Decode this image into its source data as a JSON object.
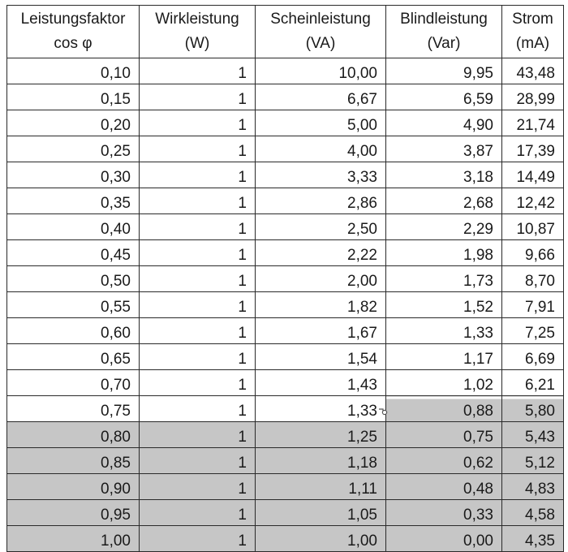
{
  "table": {
    "headers": [
      {
        "line1": "Leistungsfaktor",
        "line2": "cos φ"
      },
      {
        "line1": "Wirkleistung",
        "line2": "(W)"
      },
      {
        "line1": "Scheinleistung",
        "line2": "(VA)"
      },
      {
        "line1": "Blindleistung",
        "line2": "(Var)"
      },
      {
        "line1": "Strom",
        "line2": "(mA)"
      }
    ],
    "rows": [
      [
        "0,10",
        "1",
        "10,00",
        "9,95",
        "43,48"
      ],
      [
        "0,15",
        "1",
        "6,67",
        "6,59",
        "28,99"
      ],
      [
        "0,20",
        "1",
        "5,00",
        "4,90",
        "21,74"
      ],
      [
        "0,25",
        "1",
        "4,00",
        "3,87",
        "17,39"
      ],
      [
        "0,30",
        "1",
        "3,33",
        "3,18",
        "14,49"
      ],
      [
        "0,35",
        "1",
        "2,86",
        "2,68",
        "12,42"
      ],
      [
        "0,40",
        "1",
        "2,50",
        "2,29",
        "10,87"
      ],
      [
        "0,45",
        "1",
        "2,22",
        "1,98",
        "9,66"
      ],
      [
        "0,50",
        "1",
        "2,00",
        "1,73",
        "8,70"
      ],
      [
        "0,55",
        "1",
        "1,82",
        "1,52",
        "7,91"
      ],
      [
        "0,60",
        "1",
        "1,67",
        "1,33",
        "7,25"
      ],
      [
        "0,65",
        "1",
        "1,54",
        "1,17",
        "6,69"
      ],
      [
        "0,70",
        "1",
        "1,43",
        "1,02",
        "6,21"
      ],
      [
        "0,75",
        "1",
        "1,33",
        "0,88",
        "5,80"
      ],
      [
        "0,80",
        "1",
        "1,25",
        "0,75",
        "5,43"
      ],
      [
        "0,85",
        "1",
        "1,18",
        "0,62",
        "5,12"
      ],
      [
        "0,90",
        "1",
        "1,11",
        "0,48",
        "4,83"
      ],
      [
        "0,95",
        "1",
        "1,05",
        "0,33",
        "4,58"
      ],
      [
        "1,00",
        "1",
        "1,00",
        "0,00",
        "4,35"
      ]
    ]
  },
  "colors": {
    "selection_shade": "#c6c6c6",
    "border": "#2a2a2a",
    "text": "#1a1a1a"
  }
}
